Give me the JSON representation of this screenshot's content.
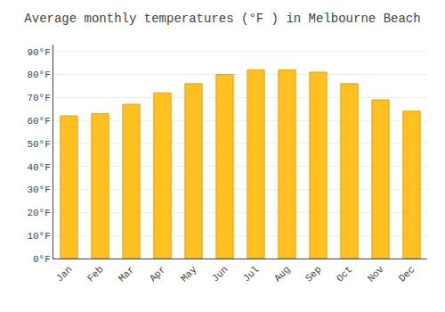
{
  "chart_data": {
    "type": "bar",
    "title": "Average monthly temperatures (°F ) in Melbourne Beach",
    "categories": [
      "Jan",
      "Feb",
      "Mar",
      "Apr",
      "May",
      "Jun",
      "Jul",
      "Aug",
      "Sep",
      "Oct",
      "Nov",
      "Dec"
    ],
    "values": [
      62,
      63,
      67,
      72,
      76,
      80,
      82,
      82,
      81,
      76,
      69,
      64
    ],
    "color": "#FFC020",
    "ylim": [
      0,
      93
    ],
    "yticks": [
      {
        "value": 0,
        "label": "0°F"
      },
      {
        "value": 10,
        "label": "10°F"
      },
      {
        "value": 20,
        "label": "20°F"
      },
      {
        "value": 30,
        "label": "30°F"
      },
      {
        "value": 40,
        "label": "40°F"
      },
      {
        "value": 50,
        "label": "50°F"
      },
      {
        "value": 60,
        "label": "60°F"
      },
      {
        "value": 70,
        "label": "70°F"
      },
      {
        "value": 80,
        "label": "80°F"
      },
      {
        "value": 90,
        "label": "90°F"
      }
    ],
    "grid": true
  }
}
